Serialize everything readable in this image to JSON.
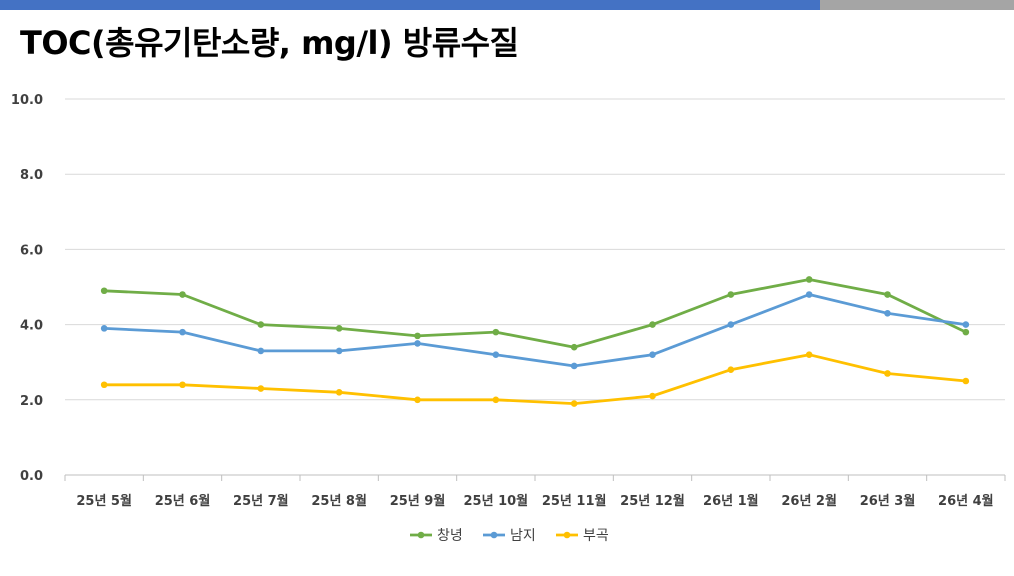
{
  "title": "TOC(총유기탄소량, mg/l) 방류수질",
  "colors": {
    "top_bar_primary": "#4472c4",
    "top_bar_secondary": "#a5a5a5",
    "gridline": "#d9d9d9"
  },
  "chart_data": {
    "type": "line",
    "title": "TOC(총유기탄소량, mg/l) 방류수질",
    "xlabel": "",
    "ylabel": "",
    "ylim": [
      0,
      10
    ],
    "yticks": [
      "0.0",
      "2.0",
      "4.0",
      "6.0",
      "8.0",
      "10.0"
    ],
    "grid": true,
    "legend_position": "bottom",
    "categories": [
      "25년 5월",
      "25년 6월",
      "25년 7월",
      "25년 8월",
      "25년 9월",
      "25년 10월",
      "25년 11월",
      "25년 12월",
      "26년 1월",
      "26년 2월",
      "26년 3월",
      "26년 4월"
    ],
    "series": [
      {
        "name": "창녕",
        "color": "#70ad47",
        "values": [
          4.9,
          4.8,
          4.0,
          3.9,
          3.7,
          3.8,
          3.4,
          4.0,
          4.8,
          5.2,
          4.8,
          3.8
        ]
      },
      {
        "name": "남지",
        "color": "#5b9bd5",
        "values": [
          3.9,
          3.8,
          3.3,
          3.3,
          3.5,
          3.2,
          2.9,
          3.2,
          4.0,
          4.8,
          4.3,
          4.0
        ]
      },
      {
        "name": "부곡",
        "color": "#ffc000",
        "values": [
          2.4,
          2.4,
          2.3,
          2.2,
          2.0,
          2.0,
          1.9,
          2.1,
          2.8,
          3.2,
          2.7,
          2.5
        ]
      }
    ]
  }
}
